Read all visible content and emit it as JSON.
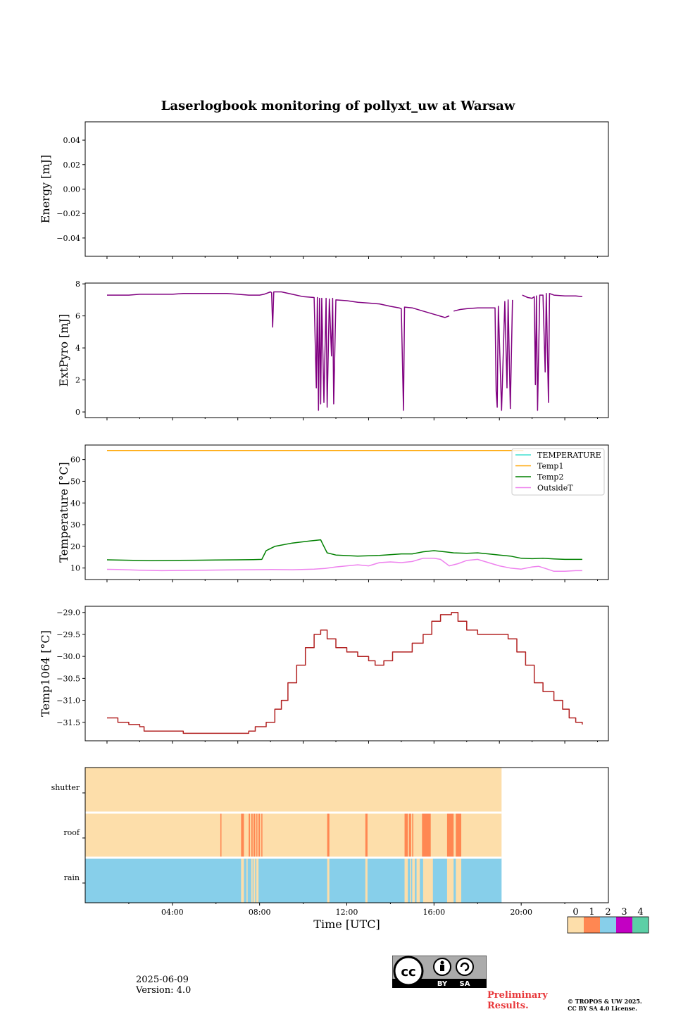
{
  "page": {
    "title": "Laserlogbook monitoring of pollyxt_uw at Warsaw",
    "date": "2025-06-09",
    "version": "Version: 4.0",
    "preliminary_1": "Preliminary",
    "preliminary_2": "Results.",
    "copyright_1": "© TROPOS & UW 2025.",
    "copyright_2": "CC BY SA 4.0 License.",
    "cc_by": "BY",
    "cc_sa": "SA"
  },
  "chart_data": [
    {
      "type": "line",
      "panel": "energy",
      "ylabel": "Energy [mJ]",
      "ylim": [
        -0.055,
        0.055
      ],
      "yticks": [
        0.04,
        0.02,
        0.0,
        -0.02,
        -0.04
      ],
      "yticklabels": [
        "0.04",
        "0.02",
        "0.00",
        "−0.02",
        "−0.04"
      ],
      "series": []
    },
    {
      "type": "line",
      "panel": "extpyro",
      "ylabel": "ExtPyro [mJ]",
      "ylim": [
        -0.35,
        8.05
      ],
      "yticks": [
        0,
        2,
        4,
        6,
        8
      ],
      "yticklabels": [
        "0",
        "2",
        "4",
        "6",
        "8"
      ],
      "color": "#800080",
      "segments": [
        [
          [
            0.5,
            7.3
          ],
          [
            1.0,
            7.3
          ],
          [
            1.5,
            7.3
          ],
          [
            2.0,
            7.35
          ],
          [
            2.5,
            7.35
          ],
          [
            3.0,
            7.35
          ],
          [
            3.5,
            7.35
          ],
          [
            4.0,
            7.4
          ],
          [
            4.5,
            7.4
          ],
          [
            5.0,
            7.4
          ],
          [
            5.5,
            7.4
          ],
          [
            6.0,
            7.4
          ],
          [
            6.5,
            7.35
          ],
          [
            7.0,
            7.3
          ],
          [
            7.5,
            7.3
          ],
          [
            7.7,
            7.35
          ],
          [
            8.0,
            7.5
          ],
          [
            8.05,
            7.45
          ],
          [
            8.1,
            5.3
          ],
          [
            8.15,
            7.5
          ],
          [
            8.5,
            7.5
          ],
          [
            9.0,
            7.35
          ],
          [
            9.5,
            7.2
          ],
          [
            10.0,
            7.15
          ],
          [
            10.1,
            1.5
          ],
          [
            10.15,
            7.15
          ],
          [
            10.2,
            0.1
          ],
          [
            10.25,
            7.1
          ],
          [
            10.3,
            0.5
          ],
          [
            10.35,
            7.1
          ],
          [
            10.45,
            0.6
          ],
          [
            10.55,
            7.1
          ],
          [
            10.6,
            0.3
          ],
          [
            10.7,
            7.05
          ],
          [
            10.8,
            3.5
          ],
          [
            10.85,
            7.1
          ],
          [
            10.9,
            0.5
          ],
          [
            11.0,
            7.0
          ],
          [
            11.5,
            6.95
          ],
          [
            12.0,
            6.85
          ],
          [
            12.5,
            6.8
          ],
          [
            13.0,
            6.75
          ],
          [
            13.5,
            6.6
          ],
          [
            13.9,
            6.5
          ],
          [
            14.0,
            6.45
          ],
          [
            14.1,
            0.1
          ],
          [
            14.15,
            6.55
          ],
          [
            14.5,
            6.5
          ],
          [
            15.0,
            6.3
          ],
          [
            15.5,
            6.1
          ],
          [
            16.0,
            5.9
          ],
          [
            16.2,
            6.0
          ]
        ],
        [
          [
            16.4,
            6.3
          ],
          [
            16.7,
            6.4
          ],
          [
            17.0,
            6.45
          ],
          [
            17.5,
            6.5
          ],
          [
            18.0,
            6.5
          ],
          [
            18.3,
            6.5
          ],
          [
            18.35,
            1.3
          ],
          [
            18.4,
            0.3
          ],
          [
            18.45,
            6.6
          ],
          [
            18.6,
            0.1
          ],
          [
            18.75,
            6.9
          ],
          [
            18.85,
            1.5
          ],
          [
            18.9,
            7.0
          ],
          [
            19.0,
            0.2
          ],
          [
            19.1,
            7.0
          ]
        ],
        [
          [
            19.55,
            7.3
          ],
          [
            19.8,
            7.15
          ],
          [
            20.0,
            7.1
          ],
          [
            20.1,
            7.2
          ],
          [
            20.15,
            1.7
          ],
          [
            20.2,
            7.25
          ],
          [
            20.25,
            0.1
          ],
          [
            20.35,
            7.3
          ],
          [
            20.5,
            7.3
          ],
          [
            20.6,
            2.5
          ],
          [
            20.65,
            7.4
          ],
          [
            20.75,
            0.6
          ],
          [
            20.8,
            7.4
          ],
          [
            21.0,
            7.3
          ],
          [
            21.5,
            7.25
          ],
          [
            22.0,
            7.25
          ],
          [
            22.3,
            7.2
          ]
        ]
      ]
    },
    {
      "type": "line",
      "panel": "temperature",
      "ylabel": "Temperature [°C]",
      "ylim": [
        4.7,
        66.7
      ],
      "yticks": [
        10,
        20,
        30,
        40,
        50,
        60
      ],
      "yticklabels": [
        "10",
        "20",
        "30",
        "40",
        "50",
        "60"
      ],
      "legend": "top-right",
      "series": [
        {
          "name": "TEMPERATURE",
          "color": "#40e0d0",
          "points": []
        },
        {
          "name": "Temp1",
          "color": "#ffa500",
          "points": [
            [
              0.5,
              64.2
            ],
            [
              19.6,
              64.2
            ]
          ]
        },
        {
          "name": "Temp2",
          "color": "#008000",
          "points": [
            [
              0.5,
              13.8
            ],
            [
              1.5,
              13.6
            ],
            [
              2.5,
              13.4
            ],
            [
              3.5,
              13.5
            ],
            [
              4.5,
              13.6
            ],
            [
              5.5,
              13.7
            ],
            [
              6.5,
              13.8
            ],
            [
              7.2,
              13.9
            ],
            [
              7.6,
              14.0
            ],
            [
              7.8,
              18.0
            ],
            [
              8.2,
              20.0
            ],
            [
              9.0,
              21.5
            ],
            [
              9.8,
              22.5
            ],
            [
              10.3,
              23.0
            ],
            [
              10.4,
              21.0
            ],
            [
              10.6,
              17.0
            ],
            [
              11.0,
              16.0
            ],
            [
              12.0,
              15.5
            ],
            [
              13.0,
              15.8
            ],
            [
              14.0,
              16.5
            ],
            [
              14.5,
              16.5
            ],
            [
              15.0,
              17.5
            ],
            [
              15.5,
              18.0
            ],
            [
              16.0,
              17.5
            ],
            [
              16.4,
              17.0
            ],
            [
              17.0,
              16.8
            ],
            [
              17.5,
              17.0
            ],
            [
              18.0,
              16.5
            ],
            [
              18.5,
              16.0
            ],
            [
              19.0,
              15.5
            ],
            [
              19.5,
              14.5
            ],
            [
              20.0,
              14.3
            ],
            [
              20.5,
              14.5
            ],
            [
              21.0,
              14.2
            ],
            [
              21.5,
              14.0
            ],
            [
              22.3,
              14.0
            ]
          ]
        },
        {
          "name": "OutsideT",
          "color": "#ee82ee",
          "points": [
            [
              0.5,
              9.4
            ],
            [
              1.0,
              9.3
            ],
            [
              2.0,
              9.0
            ],
            [
              3.0,
              8.8
            ],
            [
              4.0,
              8.9
            ],
            [
              5.0,
              9.0
            ],
            [
              6.0,
              9.1
            ],
            [
              7.0,
              9.2
            ],
            [
              8.0,
              9.3
            ],
            [
              9.0,
              9.2
            ],
            [
              10.0,
              9.5
            ],
            [
              10.5,
              9.8
            ],
            [
              11.0,
              10.5
            ],
            [
              11.5,
              11.0
            ],
            [
              12.0,
              11.5
            ],
            [
              12.5,
              11.0
            ],
            [
              13.0,
              12.5
            ],
            [
              13.5,
              12.8
            ],
            [
              14.0,
              12.5
            ],
            [
              14.5,
              13.0
            ],
            [
              15.0,
              14.5
            ],
            [
              15.5,
              14.5
            ],
            [
              15.8,
              14.0
            ],
            [
              16.2,
              11.0
            ],
            [
              16.6,
              12.0
            ],
            [
              17.0,
              13.5
            ],
            [
              17.5,
              14.0
            ],
            [
              18.0,
              12.5
            ],
            [
              18.5,
              11.0
            ],
            [
              19.0,
              10.0
            ],
            [
              19.5,
              9.5
            ],
            [
              20.0,
              10.5
            ],
            [
              20.3,
              10.8
            ],
            [
              20.7,
              9.5
            ],
            [
              21.0,
              8.5
            ],
            [
              21.5,
              8.5
            ],
            [
              22.0,
              8.8
            ],
            [
              22.3,
              8.8
            ]
          ]
        }
      ]
    },
    {
      "type": "line",
      "panel": "temp1064",
      "ylabel": "Temp1064 [°C]",
      "ylim": [
        -31.92,
        -28.86
      ],
      "yticks": [
        -29.0,
        -29.5,
        -30.0,
        -30.5,
        -31.0,
        -31.5
      ],
      "yticklabels": [
        "−29.0",
        "−29.5",
        "−30.0",
        "−30.5",
        "−31.0",
        "−31.5"
      ],
      "color": "#b22222",
      "points": [
        [
          0.5,
          -31.4
        ],
        [
          0.8,
          -31.4
        ],
        [
          1.0,
          -31.5
        ],
        [
          1.5,
          -31.55
        ],
        [
          2.0,
          -31.6
        ],
        [
          2.2,
          -31.7
        ],
        [
          3.0,
          -31.7
        ],
        [
          4.0,
          -31.75
        ],
        [
          5.0,
          -31.75
        ],
        [
          6.0,
          -31.75
        ],
        [
          7.0,
          -31.7
        ],
        [
          7.3,
          -31.6
        ],
        [
          7.8,
          -31.5
        ],
        [
          8.2,
          -31.2
        ],
        [
          8.5,
          -31.0
        ],
        [
          8.8,
          -30.6
        ],
        [
          9.2,
          -30.2
        ],
        [
          9.6,
          -29.8
        ],
        [
          10.0,
          -29.5
        ],
        [
          10.3,
          -29.4
        ],
        [
          10.6,
          -29.6
        ],
        [
          11.0,
          -29.8
        ],
        [
          11.5,
          -29.9
        ],
        [
          12.0,
          -30.0
        ],
        [
          12.5,
          -30.1
        ],
        [
          12.8,
          -30.2
        ],
        [
          13.2,
          -30.1
        ],
        [
          13.6,
          -29.9
        ],
        [
          14.0,
          -29.9
        ],
        [
          14.5,
          -29.7
        ],
        [
          15.0,
          -29.5
        ],
        [
          15.4,
          -29.2
        ],
        [
          15.8,
          -29.05
        ],
        [
          16.3,
          -29.0
        ],
        [
          16.6,
          -29.2
        ],
        [
          17.0,
          -29.4
        ],
        [
          17.5,
          -29.5
        ],
        [
          18.0,
          -29.5
        ],
        [
          18.5,
          -29.5
        ],
        [
          18.9,
          -29.6
        ],
        [
          19.3,
          -29.9
        ],
        [
          19.7,
          -30.2
        ],
        [
          20.1,
          -30.6
        ],
        [
          20.5,
          -30.8
        ],
        [
          21.0,
          -31.0
        ],
        [
          21.4,
          -31.2
        ],
        [
          21.7,
          -31.4
        ],
        [
          22.0,
          -31.5
        ],
        [
          22.3,
          -31.55
        ]
      ]
    },
    {
      "type": "heatmap",
      "panel": "status",
      "rows": [
        "shutter",
        "roof",
        "rain"
      ],
      "xlabel": "Time [UTC]",
      "xlim": [
        -0.5,
        23.5
      ],
      "xticks": [
        3.5,
        7.5,
        11.5,
        15.5,
        19.5
      ],
      "xticklabels": [
        "04:00",
        "08:00",
        "12:00",
        "16:00",
        "20:00"
      ],
      "data_end": 18.6,
      "base_colors": {
        "shutter": 0,
        "roof": 0,
        "rain": 2
      },
      "flags": {
        "roof": [
          [
            5.7,
            5.75
          ],
          [
            6.65,
            6.78
          ],
          [
            7.0,
            7.06
          ],
          [
            7.12,
            7.18
          ],
          [
            7.22,
            7.3
          ],
          [
            7.35,
            7.4
          ],
          [
            7.45,
            7.52
          ],
          [
            7.58,
            7.62
          ],
          [
            10.6,
            10.7
          ],
          [
            12.35,
            12.45
          ],
          [
            14.15,
            14.3
          ],
          [
            14.35,
            14.45
          ],
          [
            14.5,
            14.55
          ],
          [
            14.95,
            15.35
          ],
          [
            16.1,
            16.4
          ],
          [
            16.5,
            16.75
          ]
        ],
        "rain": [
          [
            6.65,
            6.78
          ],
          [
            6.9,
            6.95
          ],
          [
            7.12,
            7.18
          ],
          [
            7.22,
            7.3
          ],
          [
            7.35,
            7.45
          ],
          [
            10.6,
            10.7
          ],
          [
            12.35,
            12.45
          ],
          [
            14.15,
            14.3
          ],
          [
            14.4,
            14.45
          ],
          [
            14.5,
            14.62
          ],
          [
            14.7,
            14.85
          ],
          [
            15.0,
            15.45
          ],
          [
            16.1,
            16.4
          ],
          [
            16.5,
            16.75
          ]
        ]
      },
      "flag_colors": {
        "roof": 1,
        "rain": 0
      },
      "colorbar": {
        "ticks": [
          "0",
          "1",
          "2",
          "3",
          "4"
        ],
        "colors": [
          "#fddeaa",
          "#ff8752",
          "#87cfea",
          "#c300c3",
          "#5ccfa6"
        ]
      }
    }
  ]
}
